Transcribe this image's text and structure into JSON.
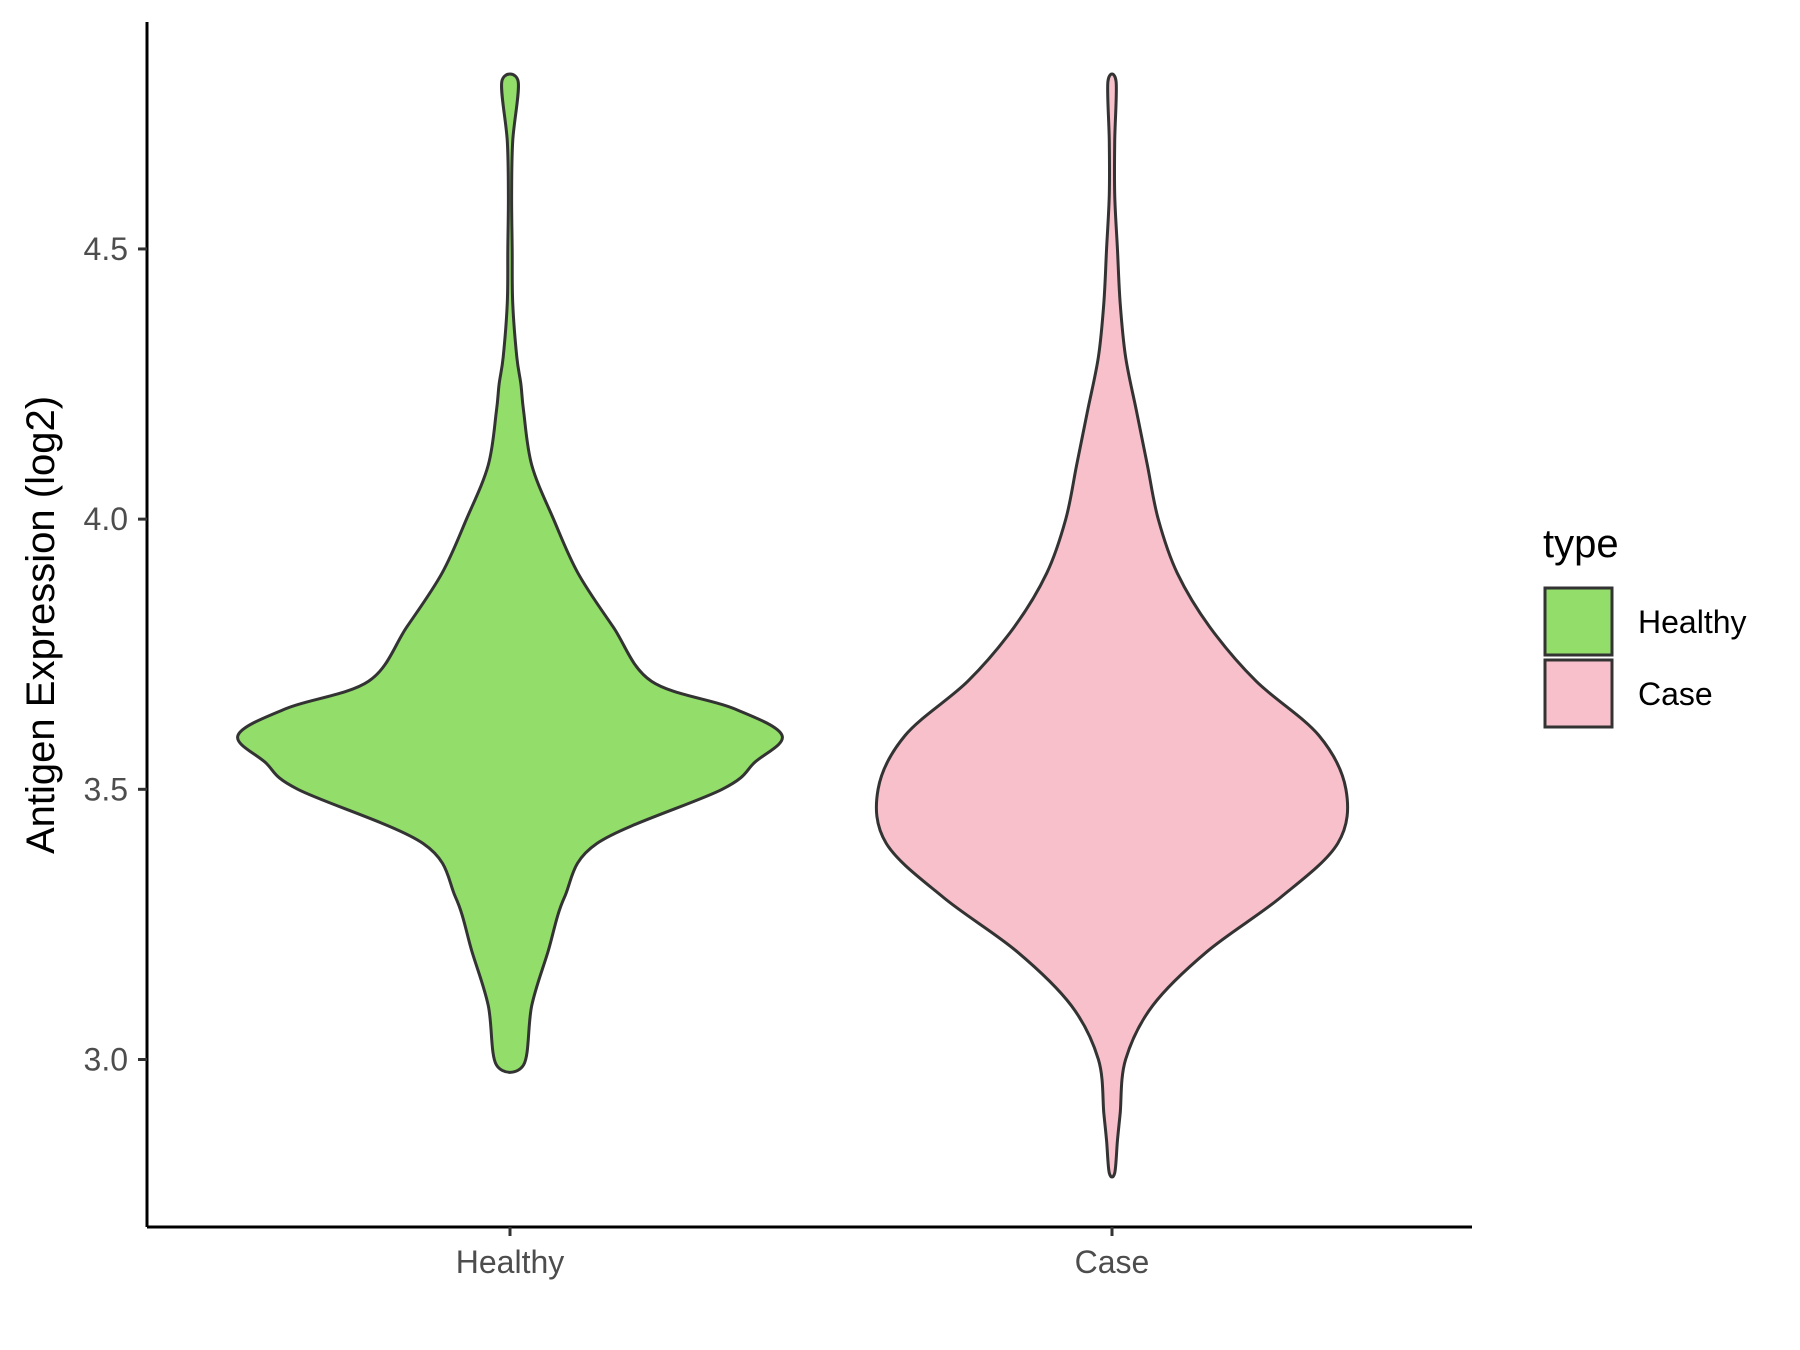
{
  "chart_data": {
    "type": "violin",
    "title": "",
    "xlabel": "",
    "ylabel": "Antigen Expression (log2)",
    "categories": [
      "Healthy",
      "Case"
    ],
    "ylim": [
      2.69,
      4.92
    ],
    "y_ticks": [
      {
        "value": 3.0,
        "label": "3.0"
      },
      {
        "value": 3.5,
        "label": "3.5"
      },
      {
        "value": 4.0,
        "label": "4.0"
      },
      {
        "value": 4.5,
        "label": "4.5"
      }
    ],
    "grid": false,
    "legend": {
      "title": "type",
      "position": "right",
      "entries": [
        {
          "label": "Healthy",
          "color": "#93dd6b"
        },
        {
          "label": "Case",
          "color": "#f8c0cb"
        }
      ]
    },
    "series": [
      {
        "name": "Healthy",
        "color": "#93dd6b",
        "y_min": 2.99,
        "y_max": 4.81,
        "density_profile": [
          [
            2.99,
            0.05
          ],
          [
            3.1,
            0.08
          ],
          [
            3.2,
            0.14
          ],
          [
            3.3,
            0.2
          ],
          [
            3.4,
            0.32
          ],
          [
            3.5,
            0.78
          ],
          [
            3.55,
            0.9
          ],
          [
            3.6,
            1.0
          ],
          [
            3.65,
            0.82
          ],
          [
            3.7,
            0.52
          ],
          [
            3.8,
            0.38
          ],
          [
            3.9,
            0.25
          ],
          [
            4.0,
            0.16
          ],
          [
            4.1,
            0.08
          ],
          [
            4.2,
            0.05
          ],
          [
            4.25,
            0.04
          ],
          [
            4.3,
            0.025
          ],
          [
            4.4,
            0.01
          ],
          [
            4.5,
            0.008
          ],
          [
            4.6,
            0.006
          ],
          [
            4.7,
            0.01
          ],
          [
            4.81,
            0.03
          ]
        ]
      },
      {
        "name": "Case",
        "color": "#f8c0cb",
        "y_min": 2.79,
        "y_max": 4.81,
        "density_profile": [
          [
            2.79,
            0.01
          ],
          [
            2.85,
            0.02
          ],
          [
            2.9,
            0.03
          ],
          [
            3.0,
            0.05
          ],
          [
            3.1,
            0.15
          ],
          [
            3.2,
            0.35
          ],
          [
            3.3,
            0.62
          ],
          [
            3.4,
            0.83
          ],
          [
            3.5,
            0.86
          ],
          [
            3.6,
            0.76
          ],
          [
            3.7,
            0.53
          ],
          [
            3.8,
            0.36
          ],
          [
            3.9,
            0.24
          ],
          [
            4.0,
            0.17
          ],
          [
            4.1,
            0.13
          ],
          [
            4.2,
            0.09
          ],
          [
            4.3,
            0.05
          ],
          [
            4.4,
            0.03
          ],
          [
            4.5,
            0.02
          ],
          [
            4.6,
            0.01
          ],
          [
            4.7,
            0.01
          ],
          [
            4.81,
            0.015
          ]
        ]
      }
    ]
  }
}
